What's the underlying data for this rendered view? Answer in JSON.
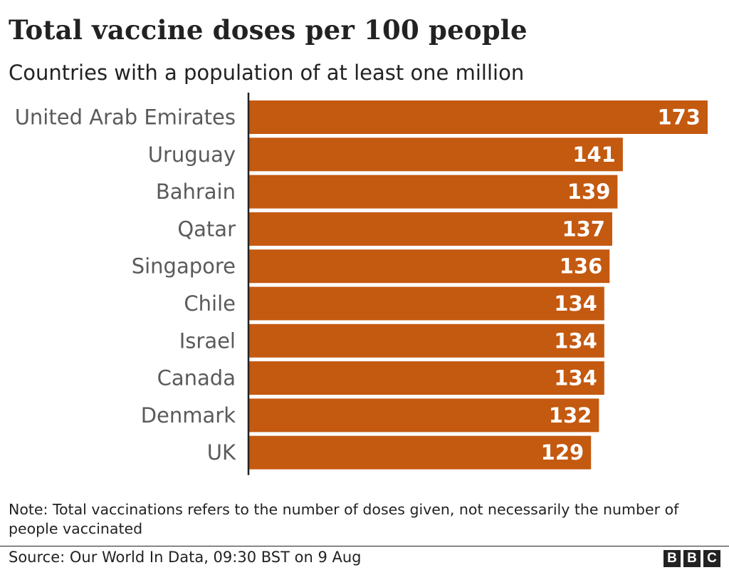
{
  "header": {
    "title": "Total vaccine doses per 100 people",
    "subtitle": "Countries with a population of at least one million"
  },
  "chart_data": {
    "type": "bar",
    "orientation": "horizontal",
    "categories": [
      "United Arab Emirates",
      "Uruguay",
      "Bahrain",
      "Qatar",
      "Singapore",
      "Chile",
      "Israel",
      "Canada",
      "Denmark",
      "UK"
    ],
    "values": [
      173,
      141,
      139,
      137,
      136,
      134,
      134,
      134,
      132,
      129
    ],
    "xlim": [
      0,
      173
    ],
    "grid": false,
    "legend": "none",
    "bar_color": "#c45910",
    "value_label_color": "#ffffff"
  },
  "footer": {
    "note": "Note: Total vaccinations refers to the number of doses given, not necessarily the number of people vaccinated",
    "source": "Source: Our World In Data, 09:30 BST on 9 Aug",
    "logo": [
      "B",
      "B",
      "C"
    ]
  }
}
